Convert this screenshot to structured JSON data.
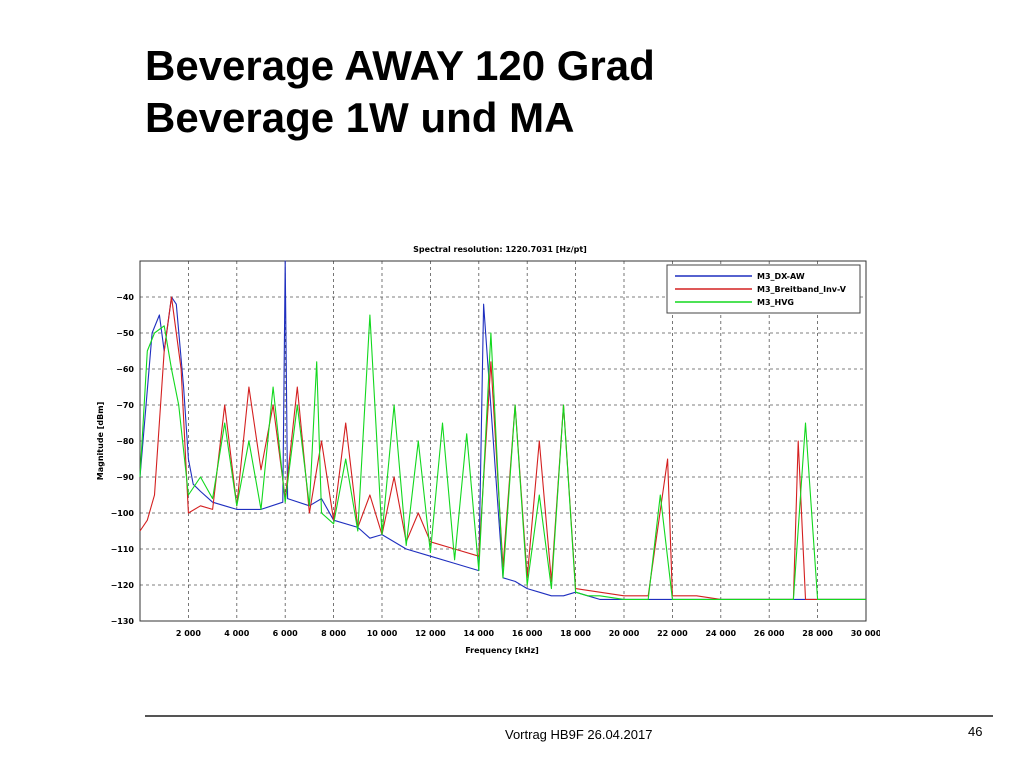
{
  "slide": {
    "title_line1": "Beverage AWAY 120 Grad",
    "title_line2": "Beverage 1W und MA",
    "footer": "Vortrag HB9F 26.04.2017",
    "page_number": "46"
  },
  "chart_data": {
    "type": "line",
    "title": "Spectral resolution:  1220.7031  [Hz/pt]",
    "xlabel": "Frequency [kHz]",
    "ylabel": "Magnitude [dBm]",
    "xlim": [
      0,
      30000
    ],
    "ylim": [
      -130,
      -30
    ],
    "grid": true,
    "legend_position": "top-right",
    "x_ticks": [
      2000,
      4000,
      6000,
      8000,
      10000,
      12000,
      14000,
      16000,
      18000,
      20000,
      22000,
      24000,
      26000,
      28000,
      30000
    ],
    "x_tick_labels": [
      "2 000",
      "4 000",
      "6 000",
      "8 000",
      "10 000",
      "12 000",
      "14 000",
      "16 000",
      "18 000",
      "20 000",
      "22 000",
      "24 000",
      "26 000",
      "28 000",
      "30 000"
    ],
    "y_ticks": [
      -130,
      -120,
      -110,
      -100,
      -90,
      -80,
      -70,
      -60,
      -50,
      -40
    ],
    "y_tick_labels": [
      "−130",
      "−120",
      "−110",
      "−100",
      "−90",
      "−80",
      "−70",
      "−60",
      "−50",
      "−40"
    ],
    "series": [
      {
        "name": "M3_DX-AW",
        "color": "#1f2fbf",
        "x": [
          0,
          500,
          800,
          1000,
          1300,
          1500,
          1800,
          2000,
          2200,
          2500,
          3000,
          3500,
          4000,
          5000,
          5900,
          6000,
          6100,
          7000,
          7500,
          8000,
          9000,
          9500,
          10000,
          11000,
          12000,
          13000,
          14000,
          14200,
          15000,
          15500,
          16000,
          16500,
          17000,
          17500,
          18000,
          18500,
          19000,
          20000,
          22000,
          24000,
          26000,
          27000,
          28000,
          30000
        ],
        "y": [
          -90,
          -50,
          -45,
          -55,
          -40,
          -42,
          -65,
          -85,
          -92,
          -94,
          -97,
          -98,
          -99,
          -99,
          -97,
          -30,
          -96,
          -98,
          -96,
          -102,
          -104,
          -107,
          -106,
          -110,
          -112,
          -114,
          -116,
          -42,
          -118,
          -119,
          -121,
          -122,
          -123,
          -123,
          -122,
          -123,
          -124,
          -124,
          -124,
          -124,
          -124,
          -124,
          -124,
          -124
        ]
      },
      {
        "name": "M3_Breitband_Inv-V",
        "color": "#d42020",
        "x": [
          0,
          300,
          600,
          1000,
          1300,
          1500,
          1700,
          2000,
          2500,
          3000,
          3500,
          4000,
          4500,
          5000,
          5500,
          6000,
          6500,
          7000,
          7500,
          8000,
          8500,
          9000,
          9500,
          10000,
          10500,
          11000,
          11500,
          12000,
          13000,
          14000,
          14500,
          15000,
          15500,
          16000,
          16500,
          17000,
          17500,
          18000,
          19000,
          20000,
          21000,
          21800,
          22000,
          23000,
          24000,
          25000,
          26000,
          27000,
          27200,
          27500,
          28000,
          30000
        ],
        "y": [
          -105,
          -102,
          -95,
          -55,
          -40,
          -50,
          -60,
          -100,
          -98,
          -99,
          -70,
          -98,
          -65,
          -88,
          -70,
          -96,
          -65,
          -100,
          -80,
          -102,
          -75,
          -104,
          -95,
          -106,
          -90,
          -108,
          -100,
          -108,
          -110,
          -112,
          -58,
          -115,
          -70,
          -118,
          -80,
          -119,
          -70,
          -121,
          -122,
          -123,
          -123,
          -85,
          -123,
          -123,
          -124,
          -124,
          -124,
          -124,
          -80,
          -124,
          -124,
          -124
        ]
      },
      {
        "name": "M3_HVG",
        "color": "#12d81e",
        "x": [
          0,
          300,
          600,
          1000,
          1300,
          1600,
          2000,
          2500,
          3000,
          3500,
          4000,
          4500,
          5000,
          5500,
          6000,
          6500,
          7000,
          7300,
          7500,
          8000,
          8500,
          9000,
          9500,
          10000,
          10500,
          11000,
          11500,
          12000,
          12500,
          13000,
          13500,
          14000,
          14500,
          15000,
          15500,
          16000,
          16500,
          17000,
          17500,
          18000,
          18500,
          19000,
          20000,
          21000,
          21500,
          22000,
          23000,
          24000,
          25000,
          26000,
          27000,
          27500,
          28000,
          30000
        ],
        "y": [
          -90,
          -55,
          -50,
          -48,
          -60,
          -70,
          -95,
          -90,
          -96,
          -75,
          -98,
          -80,
          -99,
          -65,
          -97,
          -70,
          -98,
          -58,
          -100,
          -103,
          -85,
          -105,
          -45,
          -106,
          -70,
          -109,
          -80,
          -111,
          -75,
          -113,
          -78,
          -116,
          -50,
          -118,
          -70,
          -120,
          -95,
          -121,
          -70,
          -122,
          -123,
          -123,
          -124,
          -124,
          -95,
          -124,
          -124,
          -124,
          -124,
          -124,
          -124,
          -75,
          -124,
          -124
        ]
      }
    ]
  }
}
